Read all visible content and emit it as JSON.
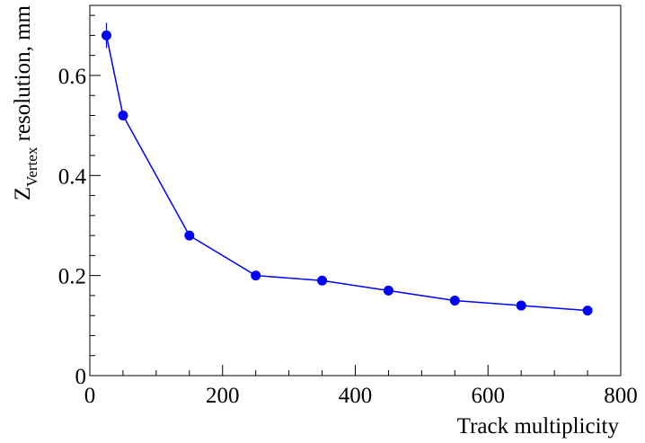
{
  "chart_data": {
    "type": "line",
    "title": "",
    "xlabel": "Track multiplicity",
    "ylabel_main": "Z",
    "ylabel_sub": "Vertex",
    "ylabel_rest": " resolution, mm",
    "xlim": [
      0,
      800
    ],
    "ylim": [
      0,
      0.74
    ],
    "x_ticks": [
      0,
      200,
      400,
      600,
      800
    ],
    "x_tick_labels": [
      "0",
      "200",
      "400",
      "600",
      "800"
    ],
    "y_ticks": [
      0,
      0.2,
      0.4,
      0.6
    ],
    "y_tick_labels": [
      "0",
      "0.2",
      "0.4",
      "0.6"
    ],
    "grid": false,
    "series": [
      {
        "color": "#0000ff",
        "x": [
          25,
          50,
          150,
          250,
          350,
          450,
          550,
          650,
          750
        ],
        "y": [
          0.68,
          0.52,
          0.28,
          0.2,
          0.19,
          0.17,
          0.15,
          0.14,
          0.13
        ],
        "y_err": [
          0.025,
          0.01,
          0.005,
          0.005,
          0.005,
          0.005,
          0.005,
          0.005,
          0.005
        ]
      }
    ]
  }
}
